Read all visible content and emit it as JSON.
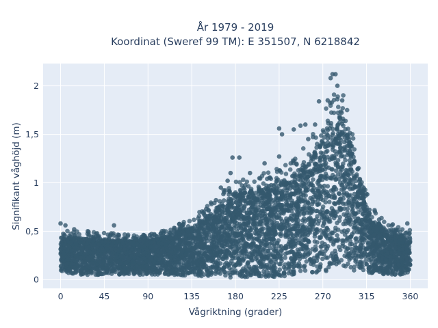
{
  "chart_data": {
    "type": "scatter",
    "title_line1": "År 1979 - 2019",
    "title_line2": "Koordinat (Sweref 99 TM): E 351507, N 6218842",
    "xlabel": "Vågriktning (grader)",
    "ylabel": "Signifikant våghöjd (m)",
    "xlim": [
      -18,
      378
    ],
    "ylim": [
      -0.09,
      2.23
    ],
    "x_ticks": [
      0,
      45,
      90,
      135,
      180,
      225,
      270,
      315,
      360
    ],
    "x_tick_labels": [
      "0",
      "45",
      "90",
      "135",
      "180",
      "225",
      "270",
      "315",
      "360"
    ],
    "y_ticks": [
      0,
      0.5,
      1,
      1.5,
      2
    ],
    "y_tick_labels": [
      "0",
      "0,5",
      "1",
      "1,5",
      "2"
    ],
    "grid": true,
    "marker_color": "#34586e",
    "envelope": {
      "x": [
        0,
        20,
        45,
        70,
        90,
        110,
        135,
        150,
        165,
        180,
        200,
        225,
        245,
        260,
        270,
        280,
        285,
        290,
        300,
        310,
        320,
        335,
        350,
        360
      ],
      "y_min": [
        0.08,
        0.05,
        0.05,
        0.05,
        0.05,
        0.05,
        0.04,
        0.03,
        0.02,
        0.02,
        0.02,
        0.03,
        0.05,
        0.07,
        0.08,
        0.1,
        0.1,
        0.1,
        0.1,
        0.08,
        0.06,
        0.05,
        0.05,
        0.08
      ],
      "y_max": [
        0.44,
        0.43,
        0.42,
        0.4,
        0.4,
        0.45,
        0.55,
        0.65,
        0.78,
        0.88,
        0.92,
        1.0,
        1.12,
        1.3,
        1.48,
        1.68,
        1.8,
        1.72,
        1.35,
        0.92,
        0.65,
        0.52,
        0.46,
        0.44
      ]
    },
    "outliers": [
      {
        "x": 0,
        "y": 0.58
      },
      {
        "x": 5,
        "y": 0.56
      },
      {
        "x": 14,
        "y": 0.52
      },
      {
        "x": 28,
        "y": 0.5
      },
      {
        "x": 55,
        "y": 0.56
      },
      {
        "x": 60,
        "y": 0.46
      },
      {
        "x": 92,
        "y": 0.46
      },
      {
        "x": 150,
        "y": 0.73
      },
      {
        "x": 160,
        "y": 0.82
      },
      {
        "x": 165,
        "y": 0.95
      },
      {
        "x": 172,
        "y": 1.02
      },
      {
        "x": 175,
        "y": 1.1
      },
      {
        "x": 177,
        "y": 1.26
      },
      {
        "x": 184,
        "y": 1.26
      },
      {
        "x": 195,
        "y": 1.1
      },
      {
        "x": 210,
        "y": 1.2
      },
      {
        "x": 215,
        "y": 1.05
      },
      {
        "x": 225,
        "y": 1.27
      },
      {
        "x": 225,
        "y": 1.56
      },
      {
        "x": 228,
        "y": 1.5
      },
      {
        "x": 240,
        "y": 1.55
      },
      {
        "x": 247,
        "y": 1.59
      },
      {
        "x": 252,
        "y": 1.6
      },
      {
        "x": 255,
        "y": 1.45
      },
      {
        "x": 262,
        "y": 1.6
      },
      {
        "x": 266,
        "y": 1.84
      },
      {
        "x": 275,
        "y": 1.85
      },
      {
        "x": 278,
        "y": 2.08
      },
      {
        "x": 280,
        "y": 2.12
      },
      {
        "x": 283,
        "y": 2.12
      },
      {
        "x": 285,
        "y": 2.0
      },
      {
        "x": 290,
        "y": 1.85
      },
      {
        "x": 300,
        "y": 1.3
      },
      {
        "x": 318,
        "y": 0.72
      },
      {
        "x": 328,
        "y": 0.62
      },
      {
        "x": 342,
        "y": 0.57
      },
      {
        "x": 357,
        "y": 0.58
      },
      {
        "x": 360,
        "y": 0.2
      }
    ]
  }
}
